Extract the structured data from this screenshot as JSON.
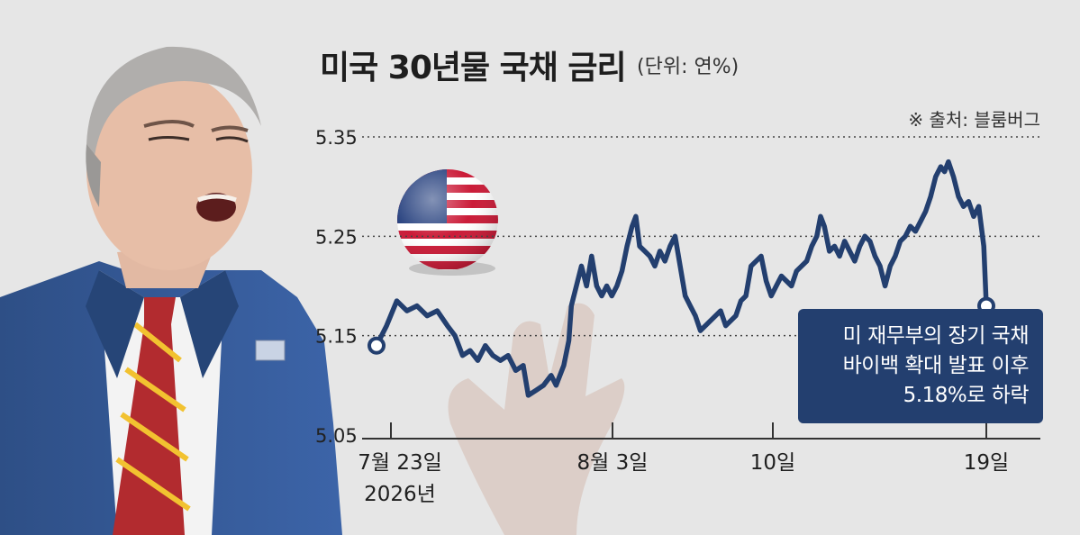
{
  "title": "미국 30년물 국채 금리",
  "unit": "(단위: 연%)",
  "source": "※ 출처: 블룸버그",
  "callout": {
    "line1": "미 재무부의 장기 국채",
    "line2": "바이백 확대 발표 이후",
    "line3": "5.18%로 하락"
  },
  "colors": {
    "line": "#233f6f",
    "background": "#e6e6e6",
    "gridline": "#444444"
  },
  "chart_data": {
    "type": "line",
    "y_tick_labels": [
      "5.35",
      "5.25",
      "5.15",
      "5.05"
    ],
    "y_ticks": [
      5.35,
      5.25,
      5.15,
      5.05
    ],
    "ylim": [
      5.05,
      5.35
    ],
    "x_tick_labels": [
      "7월 23일",
      "8월 3일",
      "10일",
      "19일"
    ],
    "x_sub_label": "2026년",
    "grid": "horizontal dotted",
    "series": [
      {
        "points": [
          [
            0.0,
            5.14
          ],
          [
            0.4,
            5.16
          ],
          [
            0.8,
            5.185
          ],
          [
            1.2,
            5.175
          ],
          [
            1.6,
            5.18
          ],
          [
            2.0,
            5.17
          ],
          [
            2.4,
            5.175
          ],
          [
            2.8,
            5.16
          ],
          [
            3.1,
            5.15
          ],
          [
            3.4,
            5.13
          ],
          [
            3.7,
            5.135
          ],
          [
            4.0,
            5.125
          ],
          [
            4.3,
            5.14
          ],
          [
            4.6,
            5.13
          ],
          [
            4.9,
            5.125
          ],
          [
            5.2,
            5.13
          ],
          [
            5.5,
            5.115
          ],
          [
            5.8,
            5.12
          ],
          [
            6.0,
            5.09
          ],
          [
            6.3,
            5.095
          ],
          [
            6.6,
            5.1
          ],
          [
            6.9,
            5.11
          ],
          [
            7.1,
            5.1
          ],
          [
            7.4,
            5.12
          ],
          [
            7.6,
            5.145
          ],
          [
            7.7,
            5.18
          ],
          [
            7.9,
            5.2
          ],
          [
            8.1,
            5.22
          ],
          [
            8.3,
            5.2
          ],
          [
            8.5,
            5.23
          ],
          [
            8.7,
            5.2
          ],
          [
            8.9,
            5.19
          ],
          [
            9.1,
            5.2
          ],
          [
            9.3,
            5.19
          ],
          [
            9.5,
            5.2
          ],
          [
            9.7,
            5.215
          ],
          [
            9.9,
            5.24
          ],
          [
            10.1,
            5.26
          ],
          [
            10.25,
            5.27
          ],
          [
            10.4,
            5.24
          ],
          [
            10.6,
            5.235
          ],
          [
            10.8,
            5.23
          ],
          [
            11.0,
            5.22
          ],
          [
            11.2,
            5.235
          ],
          [
            11.4,
            5.225
          ],
          [
            11.6,
            5.24
          ],
          [
            11.8,
            5.25
          ],
          [
            12.0,
            5.22
          ],
          [
            12.2,
            5.19
          ],
          [
            12.4,
            5.18
          ],
          [
            12.6,
            5.17
          ],
          [
            12.8,
            5.155
          ],
          [
            13.0,
            5.16
          ],
          [
            13.2,
            5.165
          ],
          [
            13.4,
            5.17
          ],
          [
            13.6,
            5.175
          ],
          [
            13.8,
            5.16
          ],
          [
            14.0,
            5.165
          ],
          [
            14.2,
            5.17
          ],
          [
            14.4,
            5.185
          ],
          [
            14.6,
            5.19
          ],
          [
            14.8,
            5.22
          ],
          [
            15.0,
            5.225
          ],
          [
            15.2,
            5.23
          ],
          [
            15.4,
            5.205
          ],
          [
            15.6,
            5.19
          ],
          [
            15.8,
            5.2
          ],
          [
            16.0,
            5.21
          ],
          [
            16.2,
            5.205
          ],
          [
            16.4,
            5.2
          ],
          [
            16.6,
            5.215
          ],
          [
            16.8,
            5.22
          ],
          [
            17.0,
            5.225
          ],
          [
            17.2,
            5.24
          ],
          [
            17.4,
            5.25
          ],
          [
            17.55,
            5.27
          ],
          [
            17.7,
            5.26
          ],
          [
            17.9,
            5.235
          ],
          [
            18.1,
            5.24
          ],
          [
            18.3,
            5.23
          ],
          [
            18.5,
            5.245
          ],
          [
            18.7,
            5.235
          ],
          [
            18.9,
            5.225
          ],
          [
            19.1,
            5.24
          ],
          [
            19.3,
            5.25
          ],
          [
            19.5,
            5.245
          ],
          [
            19.7,
            5.23
          ],
          [
            19.9,
            5.22
          ],
          [
            20.1,
            5.2
          ],
          [
            20.3,
            5.22
          ],
          [
            20.5,
            5.23
          ],
          [
            20.7,
            5.245
          ],
          [
            20.9,
            5.25
          ],
          [
            21.1,
            5.26
          ],
          [
            21.3,
            5.255
          ],
          [
            21.5,
            5.265
          ],
          [
            21.7,
            5.275
          ],
          [
            21.9,
            5.29
          ],
          [
            22.1,
            5.31
          ],
          [
            22.3,
            5.32
          ],
          [
            22.45,
            5.315
          ],
          [
            22.6,
            5.325
          ],
          [
            22.8,
            5.31
          ],
          [
            23.0,
            5.29
          ],
          [
            23.2,
            5.28
          ],
          [
            23.4,
            5.285
          ],
          [
            23.6,
            5.27
          ],
          [
            23.8,
            5.28
          ],
          [
            24.0,
            5.24
          ],
          [
            24.1,
            5.18
          ]
        ]
      }
    ]
  }
}
